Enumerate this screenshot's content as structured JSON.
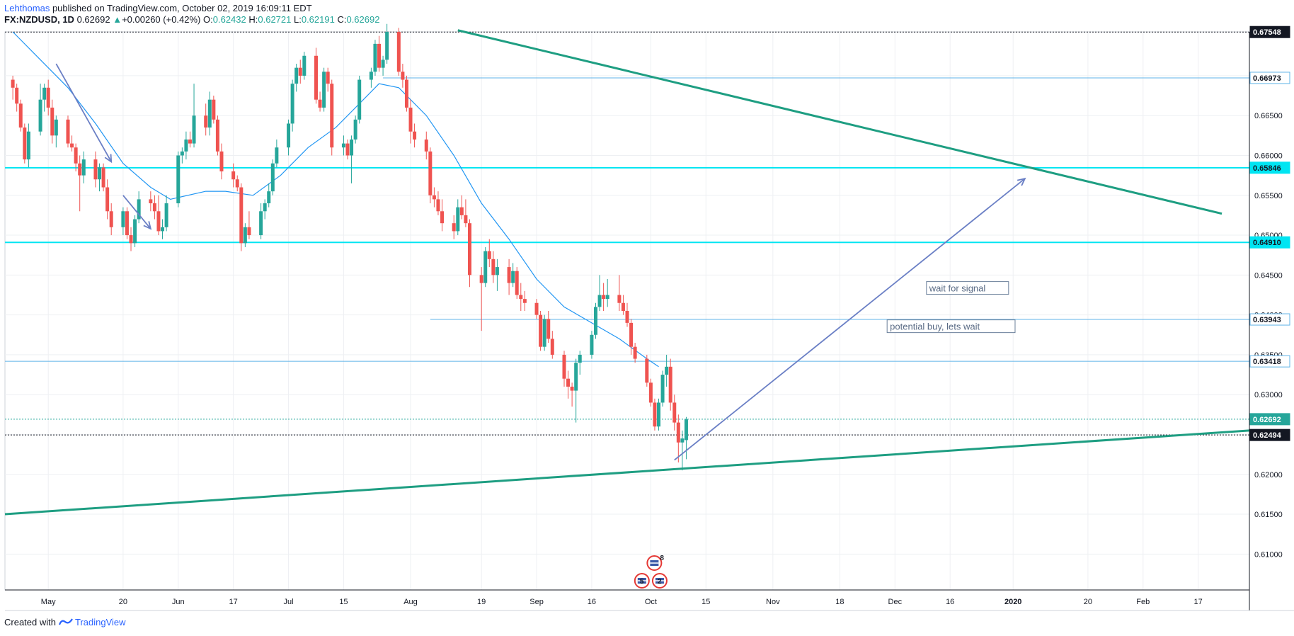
{
  "header": {
    "author": "Lehthomas",
    "published_text": "published on TradingView.com, October 02, 2019 16:09:11 EDT",
    "symbol": "FX:NZDUSD, 1D",
    "last": "0.62692",
    "change_arrow": "▲",
    "change": "+0.00260 (+0.42%)",
    "o_label": "O:",
    "o_value": "0.62432",
    "h_label": "H:",
    "h_value": "0.62721",
    "l_label": "L:",
    "l_value": "0.62191",
    "c_label": "C:",
    "c_value": "0.62692"
  },
  "footer": {
    "created_with": "Created with",
    "brand": "TradingView",
    "logo_icon": "tradingview-logo-icon"
  },
  "colors": {
    "bull": "#26a69a",
    "bear": "#ef5350",
    "trendline": "#1e9e82",
    "level_strong": "#00e5f2",
    "level_thin": "#5fb3e8",
    "ma": "#2196f3",
    "annotation_arrow": "#6a7fc5"
  },
  "chart_data": {
    "type": "candlestick",
    "symbol": "NZDUSD",
    "timeframe": "1D",
    "ylim": [
      0.6055,
      0.6755
    ],
    "xlim": [
      "2019-04-20",
      "2020-03-01"
    ],
    "x_ticks": [
      {
        "date": "2019-05-01",
        "label": "May"
      },
      {
        "date": "2019-05-20",
        "label": "20"
      },
      {
        "date": "2019-06-03",
        "label": "Jun"
      },
      {
        "date": "2019-06-17",
        "label": "17"
      },
      {
        "date": "2019-07-01",
        "label": "Jul"
      },
      {
        "date": "2019-07-15",
        "label": "15"
      },
      {
        "date": "2019-08-01",
        "label": "Aug"
      },
      {
        "date": "2019-08-19",
        "label": "19"
      },
      {
        "date": "2019-09-02",
        "label": "Sep"
      },
      {
        "date": "2019-09-16",
        "label": "16"
      },
      {
        "date": "2019-10-01",
        "label": "Oct"
      },
      {
        "date": "2019-10-15",
        "label": "15"
      },
      {
        "date": "2019-11-01",
        "label": "Nov"
      },
      {
        "date": "2019-11-18",
        "label": "18"
      },
      {
        "date": "2019-12-02",
        "label": "Dec"
      },
      {
        "date": "2019-12-16",
        "label": "16"
      },
      {
        "date": "2020-01-01",
        "label": "2020"
      },
      {
        "date": "2020-01-20",
        "label": "20"
      },
      {
        "date": "2020-02-03",
        "label": "Feb"
      },
      {
        "date": "2020-02-17",
        "label": "17"
      }
    ],
    "y_ticks": [
      "0.61000",
      "0.61500",
      "0.62000",
      "0.62500",
      "0.63000",
      "0.63500",
      "0.64000",
      "0.64500",
      "0.65000",
      "0.65500",
      "0.66000",
      "0.66500",
      "0.67000"
    ],
    "price_labels": [
      {
        "value": 0.67548,
        "text": "0.67548",
        "style": "dark"
      },
      {
        "value": 0.66973,
        "text": "0.66973",
        "style": "thin"
      },
      {
        "value": 0.65846,
        "text": "0.65846",
        "style": "cyan"
      },
      {
        "value": 0.6491,
        "text": "0.64910",
        "style": "cyan"
      },
      {
        "value": 0.63943,
        "text": "0.63943",
        "style": "thin"
      },
      {
        "value": 0.63418,
        "text": "0.63418",
        "style": "thin"
      },
      {
        "value": 0.62692,
        "text": "0.62692",
        "style": "last"
      },
      {
        "value": 0.62494,
        "text": "0.62494",
        "style": "dark"
      }
    ],
    "horizontal_lines": [
      {
        "value": 0.67548,
        "from": "2019-04-20",
        "style": "black-dotted"
      },
      {
        "value": 0.66973,
        "from": "2019-07-25",
        "style": "thin"
      },
      {
        "value": 0.65846,
        "from": "2019-04-20",
        "style": "cyan"
      },
      {
        "value": 0.6491,
        "from": "2019-04-20",
        "style": "cyan"
      },
      {
        "value": 0.63943,
        "from": "2019-08-06",
        "style": "thin"
      },
      {
        "value": 0.63418,
        "from": "2019-04-20",
        "style": "thin"
      },
      {
        "value": 0.62692,
        "from": "2019-04-20",
        "style": "last-dotted"
      },
      {
        "value": 0.62494,
        "from": "2019-04-20",
        "style": "black-dotted"
      }
    ],
    "trendlines": [
      {
        "name": "upper-trendline",
        "from": {
          "date": "2019-08-13",
          "value": 0.6757
        },
        "to": {
          "date": "2020-02-23",
          "value": 0.6527
        }
      },
      {
        "name": "lower-trendline",
        "from": {
          "date": "2019-04-20",
          "value": 0.615
        },
        "to": {
          "date": "2020-03-01",
          "value": 0.6255
        }
      }
    ],
    "arrows": [
      {
        "from": {
          "date": "2019-05-03",
          "value": 0.6715
        },
        "to": {
          "date": "2019-05-17",
          "value": 0.6592
        }
      },
      {
        "from": {
          "date": "2019-05-20",
          "value": 0.655
        },
        "to": {
          "date": "2019-05-27",
          "value": 0.6508
        }
      },
      {
        "from": {
          "date": "2019-10-07",
          "value": 0.6218
        },
        "to": {
          "date": "2020-01-04",
          "value": 0.6571
        }
      }
    ],
    "annotations": [
      {
        "text": "wait for signal",
        "date": "2019-12-10",
        "value": 0.6432
      },
      {
        "text": "potential buy, lets wait",
        "date": "2019-11-30",
        "value": 0.6384
      }
    ],
    "ma_series": [
      [
        "2019-04-22",
        0.6755
      ],
      [
        "2019-04-29",
        0.672
      ],
      [
        "2019-05-06",
        0.6685
      ],
      [
        "2019-05-13",
        0.664
      ],
      [
        "2019-05-20",
        0.659
      ],
      [
        "2019-05-27",
        0.656
      ],
      [
        "2019-06-01",
        0.6545
      ],
      [
        "2019-06-10",
        0.6555
      ],
      [
        "2019-06-15",
        0.6555
      ],
      [
        "2019-06-22",
        0.655
      ],
      [
        "2019-06-29",
        0.6575
      ],
      [
        "2019-07-06",
        0.661
      ],
      [
        "2019-07-13",
        0.6635
      ],
      [
        "2019-07-20",
        0.667
      ],
      [
        "2019-07-24",
        0.669
      ],
      [
        "2019-07-29",
        0.6685
      ],
      [
        "2019-08-05",
        0.665
      ],
      [
        "2019-08-12",
        0.66
      ],
      [
        "2019-08-19",
        0.654
      ],
      [
        "2019-08-26",
        0.6495
      ],
      [
        "2019-09-02",
        0.6445
      ],
      [
        "2019-09-09",
        0.641
      ],
      [
        "2019-09-16",
        0.639
      ],
      [
        "2019-09-23",
        0.637
      ],
      [
        "2019-09-30",
        0.6345
      ],
      [
        "2019-10-03",
        0.6335
      ]
    ],
    "candles": [
      [
        "2019-04-22",
        0.6695,
        0.67,
        0.667,
        0.6685
      ],
      [
        "2019-04-23",
        0.6685,
        0.669,
        0.6655,
        0.6665
      ],
      [
        "2019-04-24",
        0.6665,
        0.667,
        0.663,
        0.6635
      ],
      [
        "2019-04-25",
        0.6635,
        0.664,
        0.659,
        0.6595
      ],
      [
        "2019-04-26",
        0.6595,
        0.664,
        0.6585,
        0.663
      ],
      [
        "2019-04-29",
        0.663,
        0.669,
        0.6625,
        0.667
      ],
      [
        "2019-04-30",
        0.667,
        0.669,
        0.6655,
        0.6685
      ],
      [
        "2019-05-01",
        0.6685,
        0.6695,
        0.665,
        0.666
      ],
      [
        "2019-05-02",
        0.666,
        0.667,
        0.6615,
        0.6625
      ],
      [
        "2019-05-03",
        0.6625,
        0.665,
        0.661,
        0.6645
      ],
      [
        "2019-05-06",
        0.6645,
        0.665,
        0.661,
        0.6615
      ],
      [
        "2019-05-07",
        0.6615,
        0.6625,
        0.6605,
        0.661
      ],
      [
        "2019-05-08",
        0.661,
        0.6615,
        0.658,
        0.659
      ],
      [
        "2019-05-09",
        0.659,
        0.66,
        0.653,
        0.6575
      ],
      [
        "2019-05-10",
        0.6575,
        0.6605,
        0.6565,
        0.6595
      ],
      [
        "2019-05-13",
        0.6595,
        0.6605,
        0.656,
        0.657
      ],
      [
        "2019-05-14",
        0.657,
        0.659,
        0.6555,
        0.6585
      ],
      [
        "2019-05-15",
        0.6585,
        0.659,
        0.6555,
        0.656
      ],
      [
        "2019-05-16",
        0.656,
        0.657,
        0.652,
        0.653
      ],
      [
        "2019-05-17",
        0.653,
        0.654,
        0.65,
        0.651
      ],
      [
        "2019-05-20",
        0.651,
        0.6535,
        0.65,
        0.653
      ],
      [
        "2019-05-21",
        0.653,
        0.6535,
        0.6495,
        0.65
      ],
      [
        "2019-05-22",
        0.65,
        0.651,
        0.648,
        0.649
      ],
      [
        "2019-05-23",
        0.649,
        0.6525,
        0.6485,
        0.652
      ],
      [
        "2019-05-24",
        0.652,
        0.6555,
        0.6515,
        0.6545
      ],
      [
        "2019-05-27",
        0.6545,
        0.6555,
        0.653,
        0.654
      ],
      [
        "2019-05-28",
        0.654,
        0.655,
        0.652,
        0.653
      ],
      [
        "2019-05-29",
        0.653,
        0.655,
        0.65,
        0.6505
      ],
      [
        "2019-05-30",
        0.6505,
        0.652,
        0.6495,
        0.651
      ],
      [
        "2019-05-31",
        0.651,
        0.655,
        0.6505,
        0.654
      ],
      [
        "2019-06-03",
        0.654,
        0.6605,
        0.6535,
        0.66
      ],
      [
        "2019-06-04",
        0.66,
        0.661,
        0.659,
        0.6605
      ],
      [
        "2019-06-05",
        0.6605,
        0.663,
        0.6595,
        0.662
      ],
      [
        "2019-06-06",
        0.662,
        0.663,
        0.661,
        0.6615
      ],
      [
        "2019-06-07",
        0.6615,
        0.669,
        0.661,
        0.665
      ],
      [
        "2019-06-10",
        0.665,
        0.6665,
        0.6625,
        0.6635
      ],
      [
        "2019-06-11",
        0.6635,
        0.668,
        0.6625,
        0.667
      ],
      [
        "2019-06-12",
        0.667,
        0.6675,
        0.664,
        0.6645
      ],
      [
        "2019-06-13",
        0.6645,
        0.665,
        0.66,
        0.6605
      ],
      [
        "2019-06-14",
        0.6605,
        0.6615,
        0.657,
        0.658
      ],
      [
        "2019-06-17",
        0.658,
        0.659,
        0.656,
        0.657
      ],
      [
        "2019-06-18",
        0.657,
        0.6575,
        0.6555,
        0.656
      ],
      [
        "2019-06-19",
        0.656,
        0.6565,
        0.648,
        0.649
      ],
      [
        "2019-06-20",
        0.649,
        0.6515,
        0.6485,
        0.651
      ],
      [
        "2019-06-21",
        0.651,
        0.653,
        0.6495,
        0.65
      ],
      [
        "2019-06-24",
        0.65,
        0.654,
        0.6495,
        0.653
      ],
      [
        "2019-06-25",
        0.653,
        0.6545,
        0.652,
        0.654
      ],
      [
        "2019-06-26",
        0.654,
        0.6565,
        0.6535,
        0.6555
      ],
      [
        "2019-06-27",
        0.6555,
        0.6595,
        0.655,
        0.659
      ],
      [
        "2019-06-28",
        0.659,
        0.662,
        0.6585,
        0.661
      ],
      [
        "2019-07-01",
        0.661,
        0.6645,
        0.66,
        0.664
      ],
      [
        "2019-07-02",
        0.664,
        0.6695,
        0.663,
        0.669
      ],
      [
        "2019-07-03",
        0.669,
        0.6715,
        0.668,
        0.671
      ],
      [
        "2019-07-04",
        0.671,
        0.672,
        0.669,
        0.67
      ],
      [
        "2019-07-05",
        0.67,
        0.673,
        0.6695,
        0.6725
      ],
      [
        "2019-07-08",
        0.6725,
        0.6735,
        0.6665,
        0.667
      ],
      [
        "2019-07-09",
        0.667,
        0.668,
        0.6655,
        0.666
      ],
      [
        "2019-07-10",
        0.666,
        0.671,
        0.6655,
        0.6705
      ],
      [
        "2019-07-11",
        0.6705,
        0.671,
        0.668,
        0.669
      ],
      [
        "2019-07-12",
        0.669,
        0.6695,
        0.66,
        0.661
      ],
      [
        "2019-07-15",
        0.661,
        0.6625,
        0.66,
        0.6615
      ],
      [
        "2019-07-16",
        0.6615,
        0.662,
        0.6595,
        0.66
      ],
      [
        "2019-07-17",
        0.66,
        0.6625,
        0.6565,
        0.662
      ],
      [
        "2019-07-18",
        0.662,
        0.665,
        0.6615,
        0.6645
      ],
      [
        "2019-07-19",
        0.6645,
        0.67,
        0.664,
        0.6695
      ],
      [
        "2019-07-22",
        0.6695,
        0.671,
        0.6685,
        0.6705
      ],
      [
        "2019-07-23",
        0.6705,
        0.6745,
        0.67,
        0.674
      ],
      [
        "2019-07-24",
        0.674,
        0.675,
        0.6705,
        0.671
      ],
      [
        "2019-07-25",
        0.671,
        0.6725,
        0.67,
        0.672
      ],
      [
        "2019-07-26",
        0.672,
        0.6765,
        0.6715,
        0.6755
      ],
      [
        "2019-07-29",
        0.6755,
        0.676,
        0.67,
        0.6705
      ],
      [
        "2019-07-30",
        0.6705,
        0.6715,
        0.6685,
        0.6695
      ],
      [
        "2019-07-31",
        0.6695,
        0.67,
        0.6655,
        0.666
      ],
      [
        "2019-08-01",
        0.666,
        0.667,
        0.6615,
        0.663
      ],
      [
        "2019-08-02",
        0.663,
        0.664,
        0.661,
        0.662
      ],
      [
        "2019-08-05",
        0.662,
        0.663,
        0.6595,
        0.6605
      ],
      [
        "2019-08-06",
        0.6605,
        0.661,
        0.654,
        0.655
      ],
      [
        "2019-08-07",
        0.655,
        0.656,
        0.6535,
        0.6545
      ],
      [
        "2019-08-08",
        0.6545,
        0.6555,
        0.6525,
        0.653
      ],
      [
        "2019-08-09",
        0.653,
        0.6545,
        0.6505,
        0.6515
      ],
      [
        "2019-08-12",
        0.6515,
        0.6525,
        0.6495,
        0.6505
      ],
      [
        "2019-08-13",
        0.6505,
        0.6545,
        0.65,
        0.6535
      ],
      [
        "2019-08-14",
        0.6535,
        0.655,
        0.652,
        0.6525
      ],
      [
        "2019-08-15",
        0.6525,
        0.6545,
        0.651,
        0.6515
      ],
      [
        "2019-08-16",
        0.6515,
        0.652,
        0.6435,
        0.645
      ],
      [
        "2019-08-19",
        0.645,
        0.646,
        0.638,
        0.644
      ],
      [
        "2019-08-20",
        0.644,
        0.6485,
        0.6435,
        0.648
      ],
      [
        "2019-08-21",
        0.648,
        0.6495,
        0.646,
        0.647
      ],
      [
        "2019-08-22",
        0.647,
        0.648,
        0.644,
        0.645
      ],
      [
        "2019-08-23",
        0.645,
        0.647,
        0.643,
        0.646
      ],
      [
        "2019-08-26",
        0.646,
        0.647,
        0.6425,
        0.644
      ],
      [
        "2019-08-27",
        0.644,
        0.6465,
        0.6435,
        0.6455
      ],
      [
        "2019-08-28",
        0.6455,
        0.646,
        0.642,
        0.6425
      ],
      [
        "2019-08-29",
        0.6425,
        0.644,
        0.6405,
        0.642
      ],
      [
        "2019-08-30",
        0.642,
        0.643,
        0.6405,
        0.6415
      ],
      [
        "2019-09-02",
        0.6415,
        0.642,
        0.6395,
        0.64
      ],
      [
        "2019-09-03",
        0.64,
        0.6405,
        0.6355,
        0.636
      ],
      [
        "2019-09-04",
        0.636,
        0.64,
        0.6355,
        0.6395
      ],
      [
        "2019-09-05",
        0.6395,
        0.6405,
        0.6365,
        0.637
      ],
      [
        "2019-09-06",
        0.637,
        0.638,
        0.6345,
        0.635
      ],
      [
        "2019-09-09",
        0.635,
        0.6355,
        0.631,
        0.632
      ],
      [
        "2019-09-10",
        0.632,
        0.633,
        0.6295,
        0.631
      ],
      [
        "2019-09-11",
        0.631,
        0.6315,
        0.6285,
        0.6305
      ],
      [
        "2019-09-12",
        0.6305,
        0.6345,
        0.6265,
        0.634
      ],
      [
        "2019-09-13",
        0.634,
        0.6355,
        0.6325,
        0.635
      ],
      [
        "2019-09-16",
        0.635,
        0.638,
        0.6345,
        0.6375
      ],
      [
        "2019-09-17",
        0.6375,
        0.6415,
        0.637,
        0.641
      ],
      [
        "2019-09-18",
        0.641,
        0.645,
        0.6405,
        0.6425
      ],
      [
        "2019-09-19",
        0.6425,
        0.644,
        0.6405,
        0.642
      ],
      [
        "2019-09-20",
        0.642,
        0.6445,
        0.641,
        0.6425
      ],
      [
        "2019-09-23",
        0.6425,
        0.645,
        0.6405,
        0.6415
      ],
      [
        "2019-09-24",
        0.6415,
        0.6425,
        0.64,
        0.6405
      ],
      [
        "2019-09-25",
        0.6405,
        0.6415,
        0.6385,
        0.639
      ],
      [
        "2019-09-26",
        0.639,
        0.6395,
        0.635,
        0.636
      ],
      [
        "2019-09-27",
        0.636,
        0.6365,
        0.634,
        0.6345
      ],
      [
        "2019-09-30",
        0.6345,
        0.635,
        0.631,
        0.6315
      ],
      [
        "2019-10-01",
        0.6315,
        0.632,
        0.6285,
        0.629
      ],
      [
        "2019-10-02",
        0.629,
        0.6295,
        0.6255,
        0.626
      ],
      [
        "2019-10-03",
        0.626,
        0.6295,
        0.6255,
        0.629
      ],
      [
        "2019-10-04",
        0.629,
        0.633,
        0.6285,
        0.6325
      ],
      [
        "2019-10-05",
        0.6325,
        0.635,
        0.631,
        0.6335
      ],
      [
        "2019-10-06",
        0.6335,
        0.6345,
        0.628,
        0.629
      ],
      [
        "2019-10-07",
        0.629,
        0.63,
        0.6255,
        0.6265
      ],
      [
        "2019-10-08",
        0.6265,
        0.6275,
        0.6215,
        0.624
      ],
      [
        "2019-10-09",
        0.624,
        0.6255,
        0.6205,
        0.6245
      ],
      [
        "2019-10-10",
        0.6243,
        0.6272,
        0.6219,
        0.6269
      ]
    ],
    "event_icons": [
      {
        "date": "2019-10-01",
        "label": "8",
        "flag": "us-flag-icon"
      },
      {
        "date": "2019-09-30",
        "label": "5",
        "flag": "us-flag-icon"
      },
      {
        "date": "2019-10-02",
        "label": "2",
        "flag": "us-flag-icon"
      }
    ]
  }
}
